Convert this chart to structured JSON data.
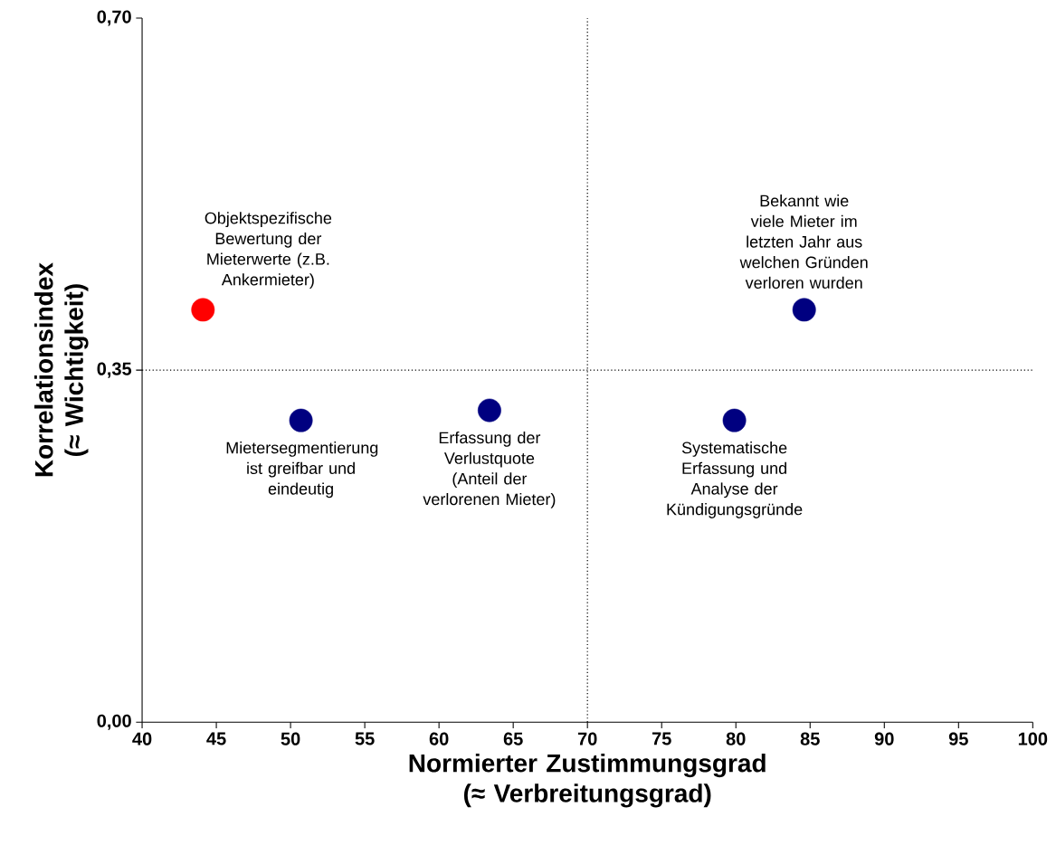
{
  "chart_data": {
    "type": "scatter",
    "xlabel": "Normierter Zustimmungsgrad (≈ Verbreitungsgrad)",
    "ylabel": "Korrelationsindex (≈ Wichtigkeit)",
    "x": [
      44.1,
      50.7,
      63.4,
      79.9,
      84.6
    ],
    "values": [
      0.41,
      0.3,
      0.31,
      0.3,
      0.41
    ],
    "colors": [
      "#ff0000",
      "#000080",
      "#000080",
      "#000080",
      "#000080"
    ],
    "marker": "circle",
    "xlim": [
      40,
      100
    ],
    "ylim": [
      0,
      0.7
    ],
    "xticks": [
      40,
      45,
      50,
      55,
      60,
      65,
      70,
      75,
      80,
      85,
      90,
      95,
      100
    ],
    "yticks": [
      {
        "value": 0,
        "label": "0,00"
      },
      {
        "value": 0.35,
        "label": "0,35"
      },
      {
        "value": 0.7,
        "label": "0,70"
      }
    ],
    "ref_lines": [
      {
        "axis": "x",
        "value": 70,
        "line_style": "dotted"
      },
      {
        "axis": "y",
        "value": 0.35,
        "line_style": "dotted"
      }
    ],
    "annotations": [
      {
        "text": "Objektspezifische Bewertung der Mieterwerte (z.B. Ankermieter)",
        "x": 44.1,
        "y": 0.41
      },
      {
        "text": "Mietersegmentierung ist greifbar und eindeutig",
        "x": 50.7,
        "y": 0.3
      },
      {
        "text": "Erfassung der Verlustquote (Anteil der verlorenen Mieter)",
        "x": 63.4,
        "y": 0.31
      },
      {
        "text": "Systematische Erfassung und Analyse der Kündigungsgründe",
        "x": 79.9,
        "y": 0.3
      },
      {
        "text": "Bekannt wie viele Mieter im letzten Jahr aus welchen Gründen verloren wurden",
        "x": 84.6,
        "y": 0.41
      }
    ]
  }
}
